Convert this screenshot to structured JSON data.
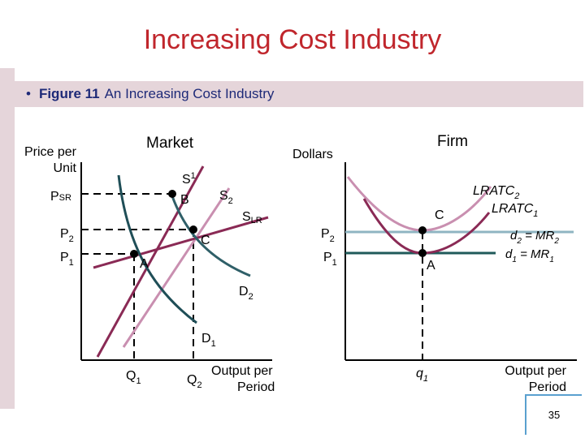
{
  "slide": {
    "title": "Increasing Cost Industry",
    "caption_bullet": "•",
    "caption_figure": "Figure 11",
    "caption_text": "An Increasing Cost Industry",
    "page_number": "35"
  },
  "market": {
    "heading": "Market",
    "y_axis_label_line1": "Price per",
    "y_axis_label_line2": "Unit",
    "x_axis_label_line1": "Output per",
    "x_axis_label_line2": "Period",
    "price_labels": {
      "psr_main": "P",
      "psr_sub": "SR",
      "p2_main": "P",
      "p2_sub": "2",
      "p1_main": "P",
      "p1_sub": "1"
    },
    "quantity_labels": {
      "q1_main": "Q",
      "q1_sub": "1",
      "q2_main": "Q",
      "q2_sub": "2"
    },
    "curve_labels": {
      "s1_main": "S",
      "s1_sub": "1",
      "s2_main": "S",
      "s2_sub": "2",
      "slr_main": "S",
      "slr_sub": "LR",
      "d1_main": "D",
      "d1_sub": "1",
      "d2_main": "D",
      "d2_sub": "2"
    },
    "point_labels": {
      "a": "A",
      "b": "B",
      "c": "C"
    }
  },
  "firm": {
    "heading": "Firm",
    "y_axis_label": "Dollars",
    "x_axis_label_line1": "Output per",
    "x_axis_label_line2": "Period",
    "price_labels": {
      "p2_main": "P",
      "p2_sub": "2",
      "p1_main": "P",
      "p1_sub": "1"
    },
    "quantity_label": {
      "main": "q",
      "sub": "1"
    },
    "curve_labels": {
      "lratc2_main": "LRATC",
      "lratc2_sub": "2",
      "lratc1_main": "LRATC",
      "lratc1_sub": "1",
      "d2_main": "d",
      "d2_sub": "2",
      "d2_rest": " = MR",
      "d2_rest_sub": "2",
      "d1_main": "d",
      "d1_sub": "1",
      "d1_rest": " = MR",
      "d1_rest_sub": "1"
    },
    "point_labels": {
      "a": "A",
      "c": "C"
    }
  },
  "colors": {
    "title": "#c0262c",
    "caption_text": "#1e2a78",
    "caption_band": "#e5d5da",
    "supply_s1": "#8a2a55",
    "supply_s2": "#c98fb0",
    "long_run_supply": "#8a2a55",
    "demand_d1": "#1f4e57",
    "demand_d2": "#2f5f68",
    "lratc2": "#c98fb0",
    "lratc1": "#8a2a55",
    "price_line_p2": "#8fb5c2",
    "price_line_p1": "#1f5a5a",
    "axes": "#000000"
  }
}
